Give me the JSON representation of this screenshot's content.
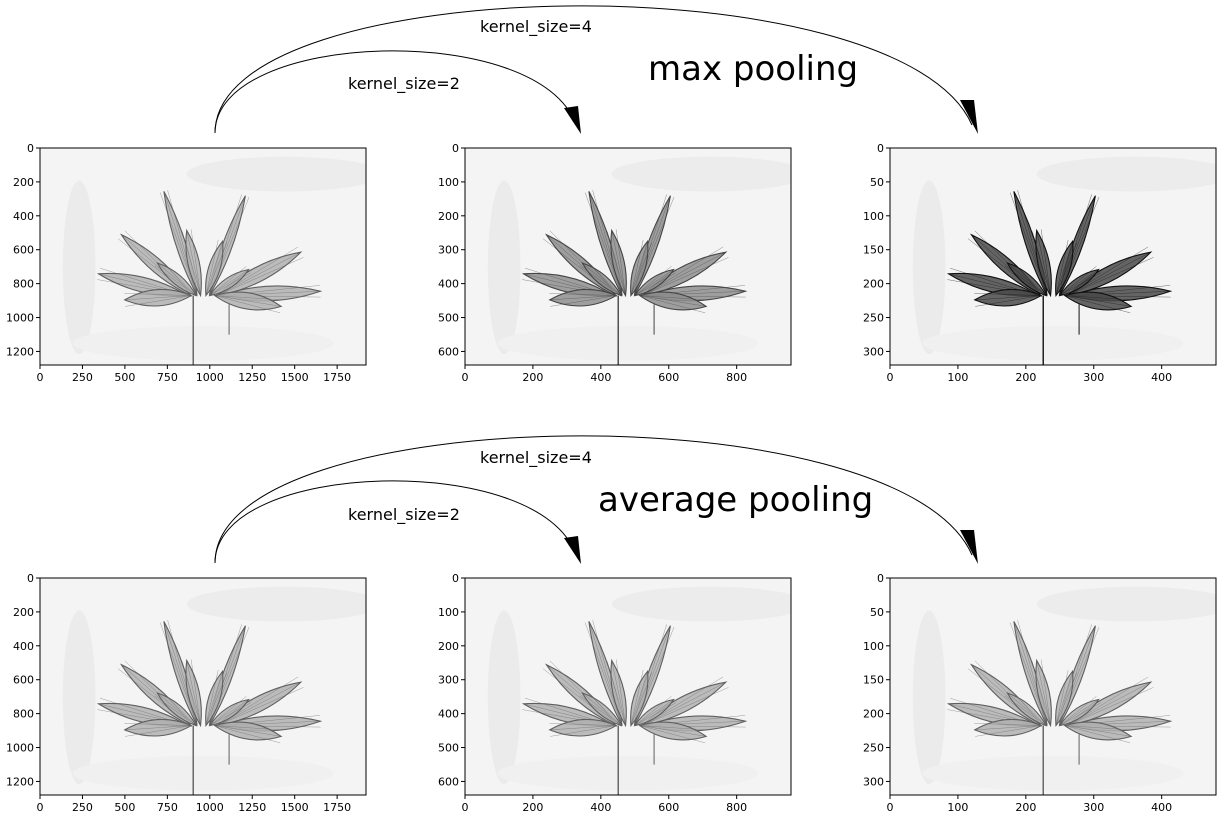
{
  "sections": [
    {
      "title": "max pooling",
      "arrows": [
        {
          "label": "kernel_size=4"
        },
        {
          "label": "kernel_size=2"
        }
      ],
      "panels": [
        {
          "x_ticks": [
            "0",
            "250",
            "500",
            "750",
            "1000",
            "1250",
            "1500",
            "1750"
          ],
          "y_ticks": [
            "0",
            "200",
            "400",
            "600",
            "800",
            "1000",
            "1200"
          ],
          "xlim": [
            0,
            1920
          ],
          "ylim": [
            1280,
            0
          ],
          "darkness": 0.35
        },
        {
          "x_ticks": [
            "0",
            "200",
            "400",
            "600",
            "800"
          ],
          "y_ticks": [
            "0",
            "100",
            "200",
            "300",
            "400",
            "500",
            "600"
          ],
          "xlim": [
            0,
            960
          ],
          "ylim": [
            640,
            0
          ],
          "darkness": 0.55
        },
        {
          "x_ticks": [
            "0",
            "100",
            "200",
            "300",
            "400"
          ],
          "y_ticks": [
            "0",
            "50",
            "100",
            "150",
            "200",
            "250",
            "300"
          ],
          "xlim": [
            0,
            480
          ],
          "ylim": [
            320,
            0
          ],
          "darkness": 0.95
        }
      ]
    },
    {
      "title": "average pooling",
      "arrows": [
        {
          "label": "kernel_size=4"
        },
        {
          "label": "kernel_size=2"
        }
      ],
      "panels": [
        {
          "x_ticks": [
            "0",
            "250",
            "500",
            "750",
            "1000",
            "1250",
            "1500",
            "1750"
          ],
          "y_ticks": [
            "0",
            "200",
            "400",
            "600",
            "800",
            "1000",
            "1200"
          ],
          "xlim": [
            0,
            1920
          ],
          "ylim": [
            1280,
            0
          ],
          "darkness": 0.35
        },
        {
          "x_ticks": [
            "0",
            "200",
            "400",
            "600",
            "800"
          ],
          "y_ticks": [
            "0",
            "100",
            "200",
            "300",
            "400",
            "500",
            "600"
          ],
          "xlim": [
            0,
            960
          ],
          "ylim": [
            640,
            0
          ],
          "darkness": 0.35
        },
        {
          "x_ticks": [
            "0",
            "100",
            "200",
            "300",
            "400"
          ],
          "y_ticks": [
            "0",
            "50",
            "100",
            "150",
            "200",
            "250",
            "300"
          ],
          "xlim": [
            0,
            480
          ],
          "ylim": [
            320,
            0
          ],
          "darkness": 0.35
        }
      ]
    }
  ]
}
